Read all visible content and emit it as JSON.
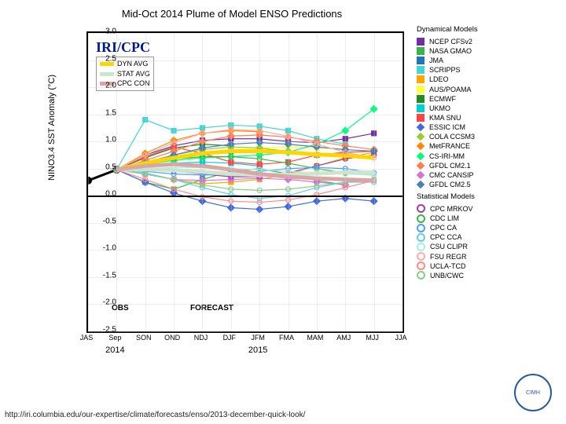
{
  "title": "Mid-Oct 2014 Plume of Model ENSO Predictions",
  "badge": "IRI/CPC",
  "ylabel": "NINO3.4 SST Anomaly (°C)",
  "ylim": [
    -2.5,
    3.0
  ],
  "yticks": [
    3.0,
    2.5,
    2.0,
    1.5,
    1.0,
    0.5,
    0.0,
    -0.5,
    -1.0,
    -1.5,
    -2.0,
    -2.5
  ],
  "xticks": [
    "JAS",
    "Sep",
    "SON",
    "OND",
    "NDJ",
    "DJF",
    "JFM",
    "FMA",
    "MAM",
    "AMJ",
    "MJJ",
    "JJA"
  ],
  "yearlabs": {
    "y2014": "2014",
    "y2015": "2015"
  },
  "yearpos": {
    "y2014": 1,
    "y2015": 6
  },
  "section_labels": {
    "obs": "OBS",
    "forecast": "FORECAST"
  },
  "avg_legend": [
    {
      "label": "DYN AVG",
      "color": "#ffd500",
      "width": 5
    },
    {
      "label": "STAT AVG",
      "color": "#cce5cc",
      "width": 5
    },
    {
      "label": "CPC CON",
      "color": "#d9a6a6",
      "width": 5
    }
  ],
  "obs": [
    0.28,
    0.48
  ],
  "dyn_models": [
    {
      "name": "NCEP CFSv2",
      "color": "#7030a0",
      "marker": "sq",
      "vals": [
        0.48,
        0.75,
        0.92,
        1.02,
        1.05,
        1.05,
        1.0,
        0.98,
        1.05,
        1.15
      ]
    },
    {
      "name": "NASA GMAO",
      "color": "#3cb44b",
      "marker": "sq",
      "vals": [
        0.48,
        0.25,
        0.12,
        0.3,
        0.45,
        0.5,
        0.4,
        0.28,
        0.2
      ]
    },
    {
      "name": "JMA",
      "color": "#1f78b4",
      "marker": "sq",
      "vals": [
        0.48,
        0.6,
        0.72,
        0.8,
        0.82,
        0.8
      ]
    },
    {
      "name": "SCRIPPS",
      "color": "#46d4d4",
      "marker": "sq",
      "vals": [
        0.48,
        1.4,
        1.2,
        1.25,
        1.3,
        1.28,
        1.2,
        1.05,
        0.95
      ]
    },
    {
      "name": "LDEO",
      "color": "#ffa500",
      "marker": "sq",
      "vals": [
        0.48,
        0.4,
        0.3,
        0.22,
        0.25,
        0.3,
        0.4,
        0.55,
        0.7,
        0.8
      ]
    },
    {
      "name": "AUS/POAMA",
      "color": "#ffff40",
      "marker": "sq",
      "vals": [
        0.48,
        0.58,
        0.68,
        0.78,
        0.85,
        0.88,
        0.9,
        0.88,
        0.85
      ]
    },
    {
      "name": "ECMWF",
      "color": "#228b22",
      "marker": "sq",
      "vals": [
        0.48,
        0.7,
        0.88,
        0.95,
        0.92
      ]
    },
    {
      "name": "UKMO",
      "color": "#00ced1",
      "marker": "sq",
      "vals": [
        0.48,
        0.55,
        0.6,
        0.62,
        0.6,
        0.55
      ]
    },
    {
      "name": "KMA SNU",
      "color": "#ff4444",
      "marker": "sq",
      "vals": [
        0.48,
        0.72,
        0.9,
        0.78,
        0.62,
        0.58,
        0.62,
        0.75,
        0.8,
        0.82
      ]
    },
    {
      "name": "ESSIC ICM",
      "color": "#4169e1",
      "marker": "di",
      "vals": [
        0.48,
        0.25,
        0.05,
        -0.1,
        -0.22,
        -0.25,
        -0.2,
        -0.1,
        -0.05,
        -0.1
      ]
    },
    {
      "name": "COLA CCSM3",
      "color": "#9acd32",
      "marker": "di",
      "vals": [
        0.48,
        0.62,
        0.75,
        0.85,
        0.9,
        0.88,
        0.82,
        0.75
      ]
    },
    {
      "name": "MetFRANCE",
      "color": "#ff8c00",
      "marker": "di",
      "vals": [
        0.48,
        0.78,
        1.02,
        1.15,
        1.2,
        1.18
      ]
    },
    {
      "name": "CS-IRI-MM",
      "color": "#00ff7f",
      "marker": "di",
      "vals": [
        0.48,
        0.58,
        0.65,
        0.7,
        0.72,
        0.75,
        0.8,
        0.95,
        1.2,
        1.6
      ]
    },
    {
      "name": "GFDL CM2.1",
      "color": "#ff7f50",
      "marker": "di",
      "vals": [
        0.48,
        0.65,
        0.82,
        1.0,
        1.1,
        1.12,
        1.08,
        1.0,
        0.92,
        0.85
      ]
    },
    {
      "name": "CMC CANSIP",
      "color": "#da70d6",
      "marker": "di",
      "vals": [
        0.48,
        0.4,
        0.3,
        0.28,
        0.3,
        0.32,
        0.3,
        0.25,
        0.2
      ]
    },
    {
      "name": "GFDL CM2.5",
      "color": "#4682b4",
      "marker": "di",
      "vals": [
        0.48,
        0.6,
        0.75,
        0.88,
        0.95,
        0.98,
        0.95,
        0.9,
        0.85,
        0.82
      ]
    }
  ],
  "stat_models": [
    {
      "name": "CPC MRKOV",
      "color": "#a040a0",
      "marker": "ci",
      "vals": [
        0.48,
        0.48,
        0.45,
        0.4,
        0.35,
        0.35,
        0.42,
        0.55,
        0.68,
        0.75
      ]
    },
    {
      "name": "CDC LIM",
      "color": "#3cb44b",
      "marker": "ci",
      "vals": [
        0.48,
        0.6,
        0.68,
        0.72,
        0.72,
        0.68,
        0.6,
        0.5,
        0.42,
        0.38
      ]
    },
    {
      "name": "CPC CA",
      "color": "#4aa0ff",
      "marker": "ci",
      "vals": [
        0.48,
        0.45,
        0.4,
        0.38,
        0.4,
        0.45,
        0.5,
        0.52,
        0.5,
        0.42
      ]
    },
    {
      "name": "CPC CCA",
      "color": "#66ccee",
      "marker": "ci",
      "vals": [
        0.48,
        0.42,
        0.3,
        0.15,
        0.02,
        -0.05,
        0.0,
        0.15,
        0.25,
        0.25
      ]
    },
    {
      "name": "CSU CLIPR",
      "color": "#aaeedd",
      "marker": "ci",
      "vals": [
        0.48,
        0.5,
        0.52,
        0.52,
        0.5,
        0.48,
        0.45,
        0.42,
        0.4,
        0.38
      ]
    },
    {
      "name": "FSU REGR",
      "color": "#ffaaaa",
      "marker": "ci",
      "vals": [
        0.48,
        0.75,
        0.98,
        1.15,
        1.22,
        1.2,
        1.1,
        0.95,
        0.8,
        0.7
      ]
    },
    {
      "name": "UCLA-TCD",
      "color": "#ff8888",
      "marker": "ci",
      "vals": [
        0.48,
        0.3,
        0.12,
        -0.02,
        -0.1,
        -0.12,
        -0.08,
        0.02,
        0.15,
        0.28
      ]
    },
    {
      "name": "UNB/CWC",
      "color": "#88cc88",
      "marker": "ci",
      "vals": [
        0.48,
        0.4,
        0.3,
        0.2,
        0.12,
        0.1,
        0.12,
        0.18,
        0.25,
        0.3
      ]
    }
  ],
  "avg_series": [
    {
      "key": "dyn",
      "color": "#ffd500",
      "width": 5,
      "vals": [
        0.48,
        0.6,
        0.7,
        0.78,
        0.82,
        0.82,
        0.8,
        0.76,
        0.74,
        0.7
      ]
    },
    {
      "key": "stat",
      "color": "#cce5cc",
      "width": 5,
      "vals": [
        0.48,
        0.49,
        0.47,
        0.44,
        0.4,
        0.38,
        0.39,
        0.41,
        0.43,
        0.43
      ]
    },
    {
      "key": "cpc",
      "color": "#d9a6a6",
      "width": 5,
      "vals": [
        0.48,
        0.55,
        0.58,
        0.55,
        0.48,
        0.4,
        0.35,
        0.32,
        0.3,
        0.28
      ]
    }
  ],
  "legend_headers": {
    "dyn": "Dynamical Models",
    "stat": "Statistical Models"
  },
  "footer_url": "http://iri.columbia.edu/our-expertise/climate/forecasts/enso/2013-december-quick-look/",
  "logo_text": "CIMH"
}
